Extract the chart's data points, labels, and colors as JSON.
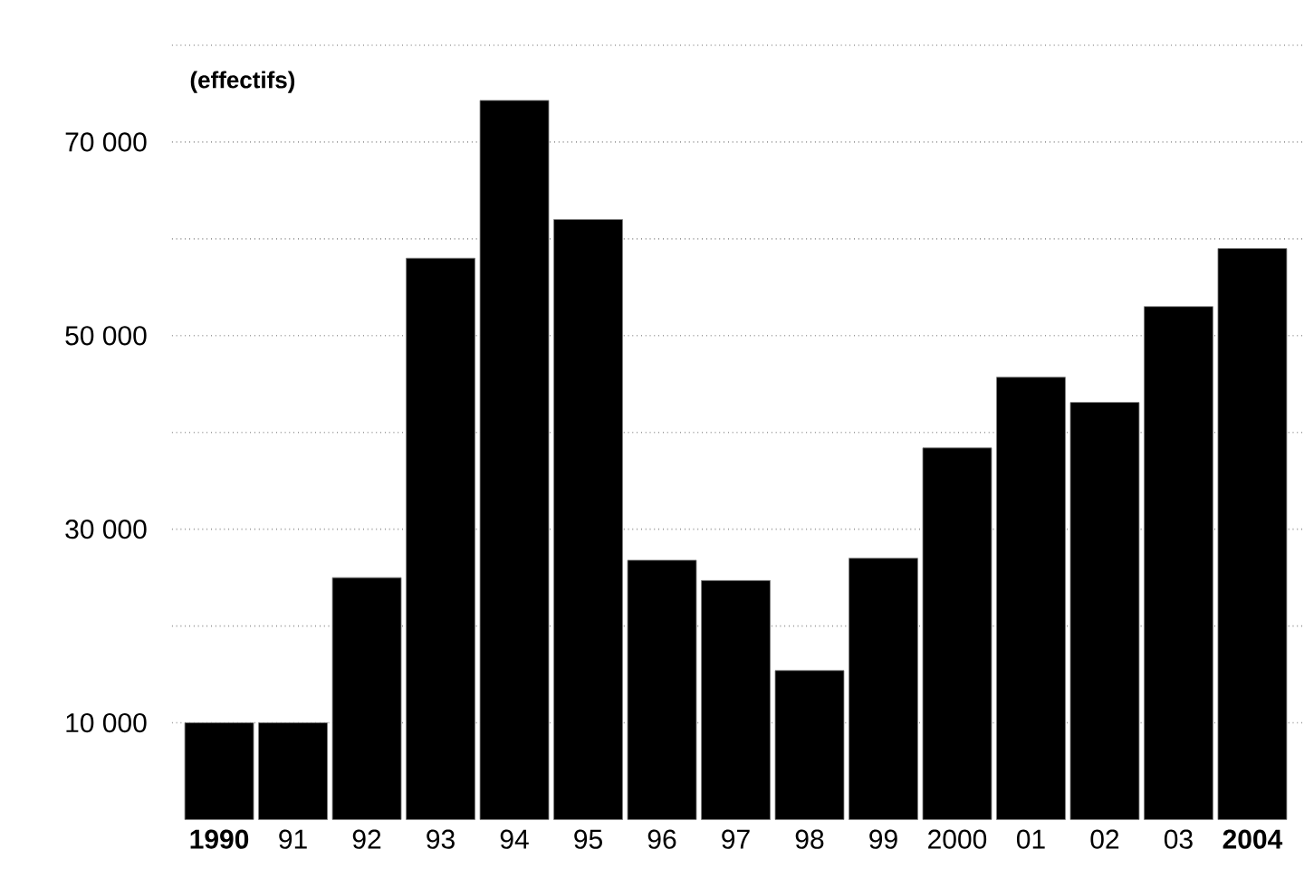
{
  "chart_data": {
    "type": "bar",
    "ylabel": "(effectifs)",
    "categories": [
      "1990",
      "91",
      "92",
      "93",
      "94",
      "95",
      "96",
      "97",
      "98",
      "99",
      "2000",
      "01",
      "02",
      "03",
      "2004"
    ],
    "values": [
      10000,
      10000,
      25000,
      58000,
      74300,
      62000,
      26800,
      24700,
      15400,
      27000,
      38400,
      45700,
      43100,
      53000,
      59000
    ],
    "color": "#000000",
    "ylim": [
      0,
      80000
    ],
    "yticks": [
      {
        "value": 10000,
        "label": "10 000"
      },
      {
        "value": 20000,
        "label": null
      },
      {
        "value": 30000,
        "label": "30 000"
      },
      {
        "value": 40000,
        "label": null
      },
      {
        "value": 50000,
        "label": "50 000"
      },
      {
        "value": 60000,
        "label": null
      },
      {
        "value": 70000,
        "label": "70 000"
      },
      {
        "value": 80000,
        "label": null
      }
    ],
    "grid": "y"
  }
}
